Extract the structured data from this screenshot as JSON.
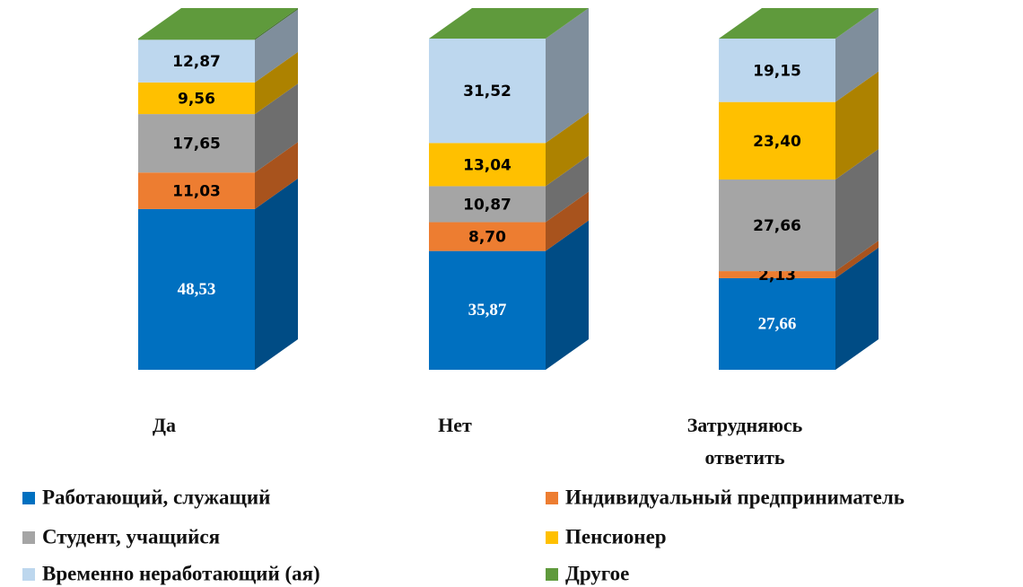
{
  "chart_data": {
    "type": "bar3d_stacked",
    "categories": [
      "Да",
      "Нет",
      "Затрудняюсь ответить"
    ],
    "ylim": [
      0,
      100
    ],
    "series": [
      {
        "name": "Работающий, служащий",
        "color": "#0070c0",
        "side_color": "#004c85",
        "values": [
          48.53,
          35.87,
          27.66
        ],
        "value_labels": [
          "48,53",
          "35,87",
          "27,66"
        ]
      },
      {
        "name": "Индивидуальный предприниматель",
        "color": "#ed7d31",
        "side_color": "#a8531d",
        "values": [
          11.03,
          8.7,
          2.13
        ],
        "value_labels": [
          "11,03",
          "8,70",
          "2,13"
        ]
      },
      {
        "name": "Студент, учащийся",
        "color": "#a5a5a5",
        "side_color": "#6e6e6e",
        "values": [
          17.65,
          10.87,
          27.66
        ],
        "value_labels": [
          "17,65",
          "10,87",
          "27,66"
        ]
      },
      {
        "name": "Пенсионер",
        "color": "#ffc000",
        "side_color": "#ad8200",
        "values": [
          9.56,
          13.04,
          23.4
        ],
        "value_labels": [
          "9,56",
          "13,04",
          "23,40"
        ]
      },
      {
        "name": "Временно неработающий (ая)",
        "color": "#bdd7ee",
        "side_color": "#7f8e9c",
        "values": [
          12.87,
          31.52,
          19.15
        ],
        "value_labels": [
          "12,87",
          "31,52",
          "19,15"
        ]
      },
      {
        "name": "Другое",
        "color": "#5f9a3c",
        "side_color": "#41702a",
        "values": [
          0.36,
          0,
          0
        ]
      }
    ]
  }
}
